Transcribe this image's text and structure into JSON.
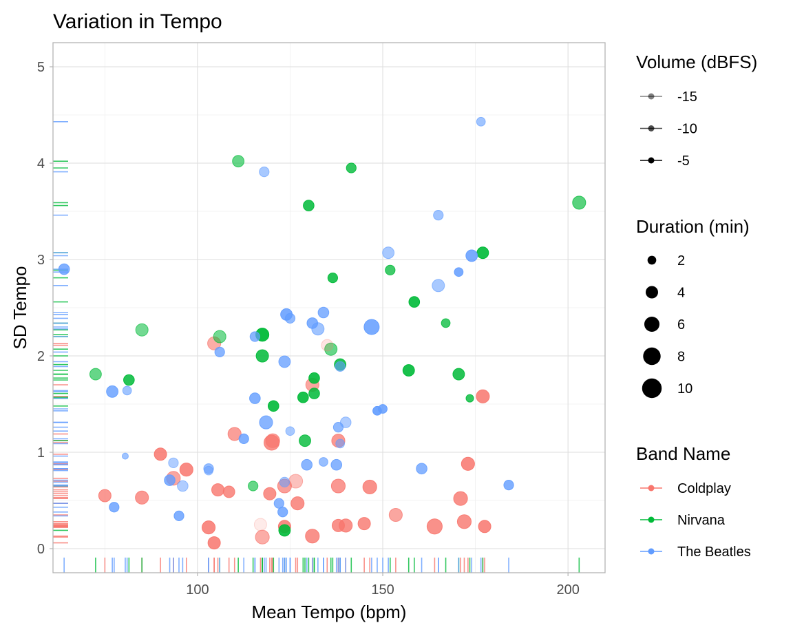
{
  "chart_data": {
    "type": "scatter",
    "title": "Variation in Tempo",
    "xlabel": "Mean Tempo (bpm)",
    "ylabel": "SD Tempo",
    "xlim": [
      61,
      210
    ],
    "ylim": [
      -0.25,
      5.25
    ],
    "x_ticks": [
      100,
      150,
      200
    ],
    "y_ticks": [
      0,
      1,
      2,
      3,
      4,
      5
    ],
    "grid": true,
    "rug": true,
    "legend_position": "right",
    "colors": {
      "Coldplay": "#F8766D",
      "Nirvana": "#00BA38",
      "The Beatles": "#619CFF"
    },
    "legend": {
      "volume": {
        "title": "Volume (dBFS)",
        "items": [
          {
            "label": "-15",
            "alpha": 0.5
          },
          {
            "label": "-10",
            "alpha": 0.7
          },
          {
            "label": "-5",
            "alpha": 1.0
          }
        ]
      },
      "duration": {
        "title": "Duration (min)",
        "items": [
          {
            "label": "2",
            "value": 2
          },
          {
            "label": "4",
            "value": 4
          },
          {
            "label": "6",
            "value": 6
          },
          {
            "label": "8",
            "value": 8
          },
          {
            "label": "10",
            "value": 10
          }
        ]
      },
      "band": {
        "title": "Band Name",
        "items": [
          "Coldplay",
          "Nirvana",
          "The Beatles"
        ]
      }
    },
    "series": [
      {
        "name": "Coldplay",
        "points": [
          [
            104.5,
            2.13,
            4.5,
            0.6
          ],
          [
            110,
            1.19,
            4.5,
            0.7
          ],
          [
            120,
            1.1,
            6,
            0.8
          ],
          [
            120.3,
            1.12,
            5,
            0.7
          ],
          [
            138,
            1.12,
            4.5,
            0.75
          ],
          [
            131,
            1.7,
            4.5,
            0.65
          ],
          [
            135,
            2.11,
            3.5,
            0.2
          ],
          [
            177,
            1.58,
            4.5,
            0.85
          ],
          [
            173,
            0.88,
            4.5,
            0.85
          ],
          [
            90,
            0.98,
            4,
            0.85
          ],
          [
            93.5,
            0.73,
            5,
            0.65
          ],
          [
            97,
            0.82,
            4.5,
            0.85
          ],
          [
            75,
            0.55,
            4,
            0.75
          ],
          [
            85,
            0.53,
            4.5,
            0.75
          ],
          [
            105.5,
            0.61,
            4,
            0.8
          ],
          [
            108.5,
            0.59,
            3.5,
            0.8
          ],
          [
            119.5,
            0.57,
            4,
            0.8
          ],
          [
            123.5,
            0.65,
            5,
            0.7
          ],
          [
            126.5,
            0.7,
            5,
            0.45
          ],
          [
            127,
            0.47,
            4.5,
            0.8
          ],
          [
            138,
            0.65,
            5,
            0.75
          ],
          [
            146.5,
            0.64,
            5,
            0.8
          ],
          [
            153.5,
            0.35,
            4.5,
            0.65
          ],
          [
            164,
            0.23,
            6,
            0.8
          ],
          [
            171,
            0.52,
            5,
            0.8
          ],
          [
            172,
            0.28,
            5,
            0.8
          ],
          [
            177.5,
            0.23,
            4,
            0.85
          ],
          [
            103,
            0.22,
            4.5,
            0.85
          ],
          [
            104.5,
            0.06,
            4,
            0.85
          ],
          [
            117,
            0.25,
            4,
            0.15
          ],
          [
            117.5,
            0.12,
            5,
            0.6
          ],
          [
            123.5,
            0.23,
            4,
            0.85
          ],
          [
            131,
            0.13,
            5,
            0.8
          ],
          [
            138,
            0.24,
            4,
            0.8
          ],
          [
            140,
            0.24,
            4.5,
            0.8
          ],
          [
            145,
            0.26,
            4,
            0.8
          ]
        ]
      },
      {
        "name": "Nirvana",
        "points": [
          [
            111,
            4.02,
            3.5,
            0.6
          ],
          [
            141.5,
            3.95,
            2.5,
            0.8
          ],
          [
            130,
            3.56,
            3,
            0.85
          ],
          [
            203,
            3.59,
            4.5,
            0.65
          ],
          [
            177,
            3.07,
            3.5,
            0.9
          ],
          [
            152,
            2.89,
            2.5,
            0.75
          ],
          [
            136.5,
            2.81,
            2.5,
            0.85
          ],
          [
            158.5,
            2.56,
            3,
            0.9
          ],
          [
            167,
            2.34,
            2,
            0.75
          ],
          [
            85,
            2.27,
            4,
            0.55
          ],
          [
            106,
            2.2,
            4,
            0.55
          ],
          [
            117.5,
            2.22,
            4.5,
            0.95
          ],
          [
            117.5,
            2.0,
            4,
            0.85
          ],
          [
            136,
            2.07,
            4,
            0.6
          ],
          [
            138.5,
            1.91,
            3.5,
            0.85
          ],
          [
            72.5,
            1.81,
            3.5,
            0.6
          ],
          [
            81.5,
            1.75,
            3,
            0.85
          ],
          [
            131.5,
            1.77,
            3,
            0.9
          ],
          [
            157,
            1.85,
            3.5,
            0.9
          ],
          [
            170.5,
            1.81,
            3.5,
            0.85
          ],
          [
            128.5,
            1.57,
            3,
            0.9
          ],
          [
            131.5,
            1.61,
            3,
            0.85
          ],
          [
            173.5,
            1.56,
            1.5,
            0.8
          ],
          [
            120.5,
            1.48,
            3,
            0.9
          ],
          [
            129,
            1.12,
            3.5,
            0.8
          ],
          [
            115,
            0.65,
            2.5,
            0.6
          ],
          [
            123.5,
            0.19,
            3.5,
            0.9
          ]
        ]
      },
      {
        "name": "The Beatles",
        "points": [
          [
            176.5,
            4.43,
            2,
            0.6
          ],
          [
            118,
            3.91,
            2.5,
            0.55
          ],
          [
            165,
            3.46,
            2.5,
            0.6
          ],
          [
            64,
            2.9,
            3,
            0.8
          ],
          [
            151.5,
            3.07,
            3.5,
            0.55
          ],
          [
            174,
            3.04,
            3.5,
            0.85
          ],
          [
            170.5,
            2.87,
            2,
            0.85
          ],
          [
            165,
            2.73,
            4,
            0.55
          ],
          [
            124,
            2.43,
            3.5,
            0.85
          ],
          [
            125,
            2.39,
            2.5,
            0.7
          ],
          [
            134,
            2.45,
            3,
            0.75
          ],
          [
            131,
            2.34,
            3,
            0.8
          ],
          [
            132.5,
            2.28,
            4,
            0.6
          ],
          [
            147,
            2.3,
            6,
            0.85
          ],
          [
            115.5,
            2.2,
            2.5,
            0.75
          ],
          [
            106,
            2.04,
            2.5,
            0.75
          ],
          [
            123.5,
            1.94,
            3.5,
            0.75
          ],
          [
            138.5,
            1.89,
            2.5,
            0.6
          ],
          [
            77,
            1.63,
            3.5,
            0.8
          ],
          [
            81,
            1.64,
            2,
            0.6
          ],
          [
            115.5,
            1.56,
            3,
            0.8
          ],
          [
            118.5,
            1.31,
            4.5,
            0.75
          ],
          [
            140,
            1.31,
            3,
            0.5
          ],
          [
            148.5,
            1.43,
            2,
            0.9
          ],
          [
            150,
            1.45,
            2,
            0.85
          ],
          [
            112.5,
            1.14,
            2.5,
            0.8
          ],
          [
            138,
            1.26,
            2.5,
            0.7
          ],
          [
            125,
            1.22,
            2,
            0.55
          ],
          [
            138.5,
            1.09,
            2,
            0.55
          ],
          [
            80.5,
            0.96,
            1,
            0.6
          ],
          [
            93.5,
            0.89,
            2.5,
            0.5
          ],
          [
            103,
            0.83,
            2.5,
            0.65
          ],
          [
            103,
            0.81,
            2,
            0.5
          ],
          [
            92.5,
            0.71,
            3,
            0.8
          ],
          [
            96,
            0.65,
            3,
            0.5
          ],
          [
            160.5,
            0.83,
            3,
            0.75
          ],
          [
            129.5,
            0.87,
            3,
            0.75
          ],
          [
            134,
            0.9,
            2,
            0.65
          ],
          [
            137.5,
            0.87,
            3,
            0.75
          ],
          [
            123.5,
            0.69,
            2.5,
            0.55
          ],
          [
            122,
            0.47,
            2.5,
            0.75
          ],
          [
            123,
            0.38,
            2.5,
            0.8
          ],
          [
            77.5,
            0.43,
            2.5,
            0.8
          ],
          [
            95,
            0.34,
            2.5,
            0.8
          ],
          [
            184,
            0.66,
            2.5,
            0.8
          ]
        ]
      }
    ]
  }
}
